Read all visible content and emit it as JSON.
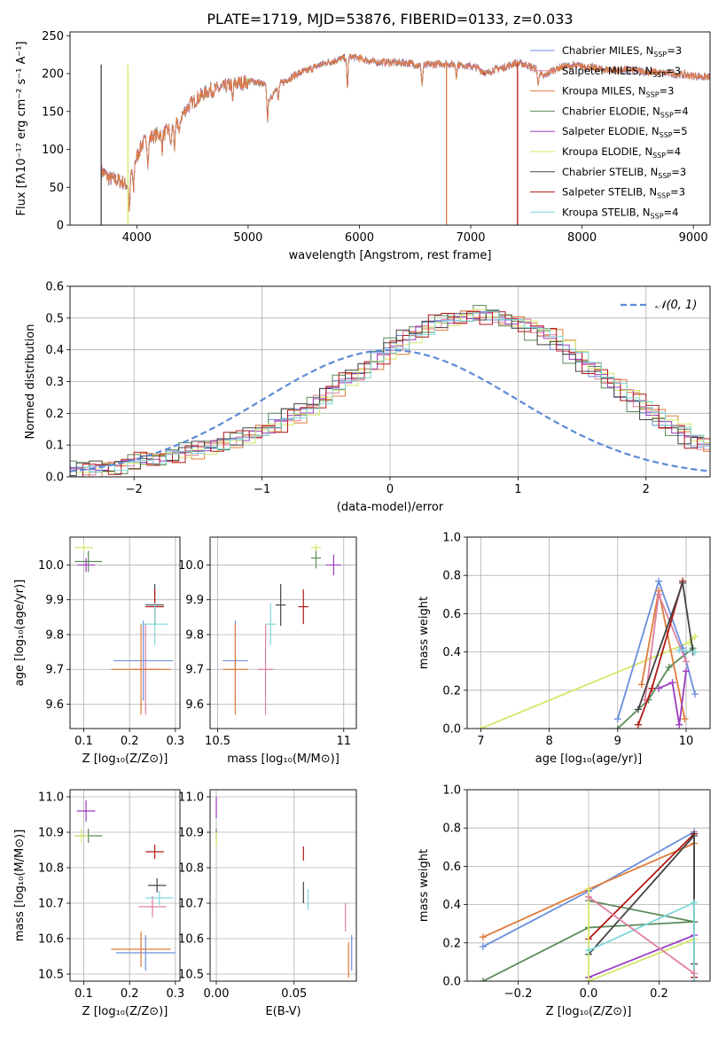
{
  "title": "PLATE=1719, MJD=53876, FIBERID=0133, z=0.033",
  "colors": {
    "chabrier_miles": "#6a8fdb",
    "salpeter_miles": "#e07fa0",
    "kroupa_miles": "#e07b39",
    "chabrier_elodie": "#5a8a5a",
    "salpeter_elodie": "#9b3cc0",
    "kroupa_elodie": "#d4e86a",
    "chabrier_stelib": "#444444",
    "salpeter_stelib": "#b01818",
    "kroupa_stelib": "#7fd7da"
  },
  "chart_data": [
    {
      "id": "spectrum",
      "type": "line",
      "xlabel": "wavelength [Angstrom, rest frame]",
      "ylabel": "Flux [fλ10⁻¹⁷ erg cm⁻² s⁻¹ A⁻¹]",
      "xlim": [
        3400,
        9150
      ],
      "ylim": [
        0,
        255
      ],
      "xticks": [
        4000,
        5000,
        6000,
        7000,
        8000,
        9000
      ],
      "yticks": [
        0,
        50,
        100,
        150,
        200,
        250
      ],
      "legend": [
        {
          "label": "Chabrier MILES, N",
          "sub": "SSP",
          "val": "=3",
          "color": "chabrier_miles"
        },
        {
          "label": "Salpeter MILES, N",
          "sub": "SSP",
          "val": "=3",
          "color": "salpeter_miles"
        },
        {
          "label": "Kroupa MILES, N",
          "sub": "SSP",
          "val": "=3",
          "color": "kroupa_miles"
        },
        {
          "label": "Chabrier ELODIE, N",
          "sub": "SSP",
          "val": "=4",
          "color": "chabrier_elodie"
        },
        {
          "label": "Salpeter ELODIE, N",
          "sub": "SSP",
          "val": "=5",
          "color": "salpeter_elodie"
        },
        {
          "label": "Kroupa ELODIE, N",
          "sub": "SSP",
          "val": "=4",
          "color": "kroupa_elodie"
        },
        {
          "label": "Chabrier STELIB, N",
          "sub": "SSP",
          "val": "=3",
          "color": "chabrier_stelib"
        },
        {
          "label": "Salpeter STELIB, N",
          "sub": "SSP",
          "val": "=3",
          "color": "salpeter_stelib"
        },
        {
          "label": "Kroupa STELIB, N",
          "sub": "SSP",
          "val": "=4",
          "color": "kroupa_stelib"
        }
      ],
      "continuum": [
        [
          3680,
          72
        ],
        [
          3750,
          62
        ],
        [
          3850,
          58
        ],
        [
          3920,
          52
        ],
        [
          3960,
          75
        ],
        [
          4050,
          108
        ],
        [
          4150,
          118
        ],
        [
          4250,
          122
        ],
        [
          4350,
          132
        ],
        [
          4450,
          155
        ],
        [
          4550,
          168
        ],
        [
          4650,
          178
        ],
        [
          4750,
          180
        ],
        [
          4850,
          186
        ],
        [
          4950,
          188
        ],
        [
          5050,
          190
        ],
        [
          5150,
          185
        ],
        [
          5200,
          165
        ],
        [
          5250,
          182
        ],
        [
          5350,
          192
        ],
        [
          5450,
          200
        ],
        [
          5550,
          205
        ],
        [
          5650,
          212
        ],
        [
          5750,
          216
        ],
        [
          5850,
          220
        ],
        [
          5950,
          222
        ],
        [
          6050,
          218
        ],
        [
          6150,
          215
        ],
        [
          6250,
          215
        ],
        [
          6350,
          214
        ],
        [
          6450,
          214
        ],
        [
          6550,
          210
        ],
        [
          6650,
          212
        ],
        [
          6750,
          213
        ],
        [
          6850,
          212
        ],
        [
          6950,
          211
        ],
        [
          7050,
          208
        ],
        [
          7150,
          200
        ],
        [
          7200,
          205
        ],
        [
          7300,
          208
        ],
        [
          7400,
          214
        ],
        [
          7500,
          212
        ],
        [
          7600,
          205
        ],
        [
          7650,
          195
        ],
        [
          7750,
          206
        ],
        [
          7850,
          210
        ],
        [
          8000,
          210
        ],
        [
          8200,
          205
        ],
        [
          8400,
          205
        ],
        [
          8600,
          202
        ],
        [
          8800,
          200
        ],
        [
          9000,
          197
        ],
        [
          9150,
          195
        ]
      ],
      "dips": [
        [
          3935,
          40
        ],
        [
          3970,
          35
        ],
        [
          4101,
          30
        ],
        [
          4227,
          20
        ],
        [
          4305,
          25
        ],
        [
          4340,
          30
        ],
        [
          4383,
          20
        ],
        [
          4861,
          25
        ],
        [
          5175,
          35
        ],
        [
          5270,
          20
        ],
        [
          5892,
          40
        ],
        [
          6563,
          25
        ],
        [
          6870,
          15
        ],
        [
          7605,
          20
        ]
      ],
      "drops": [
        {
          "x": 6782,
          "color": "kroupa_miles"
        },
        {
          "x": 7420,
          "color": "salpeter_stelib"
        },
        {
          "x": 3680,
          "color": "chabrier_stelib"
        },
        {
          "x": 3920,
          "color": "kroupa_elodie"
        }
      ]
    },
    {
      "id": "residuals",
      "type": "histogram",
      "xlabel": "(data-model)/error",
      "ylabel": "Normed distribution",
      "xlim": [
        -2.5,
        2.5
      ],
      "ylim": [
        0,
        0.6
      ],
      "xticks": [
        -2,
        -1,
        0,
        1,
        2
      ],
      "xtick_labels": [
        "−2",
        "−1",
        "0",
        "1",
        "2"
      ],
      "yticks": [
        0.0,
        0.1,
        0.2,
        0.3,
        0.4,
        0.5,
        0.6
      ],
      "gaussian_label": "𝒩(0, 1)",
      "gaussian_color": "#5b8bd8",
      "bin_edges": [
        -2.5,
        2.5
      ],
      "bin_width": 0.1,
      "hist_ref": [
        0.02,
        0.02,
        0.03,
        0.03,
        0.04,
        0.05,
        0.05,
        0.06,
        0.07,
        0.08,
        0.09,
        0.1,
        0.11,
        0.12,
        0.14,
        0.15,
        0.17,
        0.19,
        0.21,
        0.24,
        0.27,
        0.3,
        0.32,
        0.35,
        0.38,
        0.41,
        0.44,
        0.46,
        0.48,
        0.49,
        0.5,
        0.51,
        0.51,
        0.5,
        0.49,
        0.48,
        0.46,
        0.44,
        0.41,
        0.38,
        0.35,
        0.32,
        0.29,
        0.26,
        0.23,
        0.2,
        0.17,
        0.15,
        0.12,
        0.1
      ],
      "hist_scatter": [
        0.01,
        -0.006,
        0.004,
        -0.012,
        0.008,
        0.003,
        -0.009,
        0.006,
        0.011,
        -0.004,
        0.005,
        -0.01,
        0.007,
        0.002,
        -0.008,
        0.012
      ]
    },
    {
      "id": "age_vs_Z",
      "type": "errorbar",
      "xlabel": "Z [log₁₀(Z/Z⊙)]",
      "ylabel": "age  [log₁₀(age/yr)]",
      "xlim": [
        0.07,
        0.31
      ],
      "ylim": [
        9.53,
        10.08
      ],
      "xticks": [
        0.1,
        0.2,
        0.3
      ],
      "yticks": [
        9.6,
        9.7,
        9.8,
        9.9,
        10.0
      ],
      "points": [
        {
          "c": "chabrier_miles",
          "x": 0.23,
          "xerr": 0.065,
          "y": 9.725,
          "yerr": 0.115
        },
        {
          "c": "salpeter_miles",
          "x": 0.235,
          "xerr": 0.03,
          "y": 9.7,
          "yerr": 0.13
        },
        {
          "c": "kroupa_miles",
          "x": 0.225,
          "xerr": 0.065,
          "y": 9.7,
          "yerr": 0.13
        },
        {
          "c": "chabrier_elodie",
          "x": 0.11,
          "xerr": 0.03,
          "y": 10.01,
          "yerr": 0.03
        },
        {
          "c": "salpeter_elodie",
          "x": 0.105,
          "xerr": 0.02,
          "y": 10.0,
          "yerr": 0.02
        },
        {
          "c": "kroupa_elodie",
          "x": 0.1,
          "xerr": 0.02,
          "y": 10.05,
          "yerr": 0.01
        },
        {
          "c": "chabrier_stelib",
          "x": 0.255,
          "xerr": 0.02,
          "y": 9.885,
          "yerr": 0.06
        },
        {
          "c": "salpeter_stelib",
          "x": 0.255,
          "xerr": 0.02,
          "y": 9.88,
          "yerr": 0.05
        },
        {
          "c": "kroupa_stelib",
          "x": 0.255,
          "xerr": 0.03,
          "y": 9.83,
          "yerr": 0.06
        }
      ]
    },
    {
      "id": "age_vs_mass",
      "type": "errorbar",
      "xlabel": "mass [log₁₀(M/M⊙)]",
      "ylabel": "",
      "xlim": [
        10.47,
        11.05
      ],
      "ylim": [
        9.53,
        10.08
      ],
      "xticks": [
        10.5,
        11.0
      ],
      "yticks": [
        9.6,
        9.7,
        9.8,
        9.9,
        10.0
      ],
      "points": [
        {
          "c": "chabrier_miles",
          "x": 10.57,
          "xerr": 0.05,
          "y": 9.725,
          "yerr": 0.115
        },
        {
          "c": "salpeter_miles",
          "x": 10.69,
          "xerr": 0.03,
          "y": 9.7,
          "yerr": 0.13
        },
        {
          "c": "kroupa_miles",
          "x": 10.57,
          "xerr": 0.05,
          "y": 9.7,
          "yerr": 0.13
        },
        {
          "c": "chabrier_elodie",
          "x": 10.89,
          "xerr": 0.02,
          "y": 10.02,
          "yerr": 0.03
        },
        {
          "c": "salpeter_elodie",
          "x": 10.96,
          "xerr": 0.03,
          "y": 10.0,
          "yerr": 0.03
        },
        {
          "c": "kroupa_elodie",
          "x": 10.89,
          "xerr": 0.02,
          "y": 10.05,
          "yerr": 0.01
        },
        {
          "c": "chabrier_stelib",
          "x": 10.75,
          "xerr": 0.02,
          "y": 9.885,
          "yerr": 0.06
        },
        {
          "c": "salpeter_stelib",
          "x": 10.84,
          "xerr": 0.02,
          "y": 9.88,
          "yerr": 0.05
        },
        {
          "c": "kroupa_stelib",
          "x": 10.71,
          "xerr": 0.02,
          "y": 9.83,
          "yerr": 0.06
        }
      ]
    },
    {
      "id": "weight_vs_age",
      "type": "line",
      "xlabel": "age  [log₁₀(age/yr)]",
      "ylabel": "mass weight",
      "xlim": [
        6.8,
        10.35
      ],
      "ylim": [
        0,
        1.0
      ],
      "xticks": [
        7,
        8,
        9,
        10
      ],
      "yticks": [
        0.0,
        0.2,
        0.4,
        0.6,
        0.8,
        1.0
      ],
      "series": [
        {
          "c": "kroupa_elodie",
          "x": [
            7.0,
            10.05,
            10.13
          ],
          "y": [
            0.0,
            0.45,
            0.48
          ]
        },
        {
          "c": "chabrier_elodie",
          "x": [
            9.0,
            9.45,
            9.75,
            10.1
          ],
          "y": [
            0.0,
            0.15,
            0.32,
            0.42
          ]
        },
        {
          "c": "chabrier_miles",
          "x": [
            9.0,
            9.6,
            9.95,
            10.13
          ],
          "y": [
            0.05,
            0.77,
            0.42,
            0.18
          ]
        },
        {
          "c": "kroupa_miles",
          "x": [
            9.35,
            9.6,
            9.98
          ],
          "y": [
            0.23,
            0.72,
            0.05
          ]
        },
        {
          "c": "salpeter_miles",
          "x": [
            9.4,
            9.6,
            10.0
          ],
          "y": [
            0.15,
            0.7,
            0.35
          ]
        },
        {
          "c": "salpeter_stelib",
          "x": [
            9.3,
            9.5,
            9.95
          ],
          "y": [
            0.02,
            0.21,
            0.77
          ]
        },
        {
          "c": "chabrier_stelib",
          "x": [
            9.3,
            9.95,
            10.1
          ],
          "y": [
            0.1,
            0.76,
            0.4
          ]
        },
        {
          "c": "salpeter_elodie",
          "x": [
            9.6,
            9.8,
            9.9,
            10.0
          ],
          "y": [
            0.21,
            0.24,
            0.02,
            0.3
          ]
        },
        {
          "c": "kroupa_stelib",
          "x": [
            9.9,
            10.13
          ],
          "y": [
            0.41,
            0.4
          ]
        }
      ]
    },
    {
      "id": "mass_vs_Z",
      "type": "errorbar",
      "xlabel": "Z [log₁₀(Z/Z⊙)]",
      "ylabel": "mass [log₁₀(M/M⊙)]",
      "xlim": [
        0.07,
        0.31
      ],
      "ylim": [
        10.48,
        11.02
      ],
      "xticks": [
        0.1,
        0.2,
        0.3
      ],
      "yticks": [
        10.5,
        10.6,
        10.7,
        10.8,
        10.9,
        11.0
      ],
      "points": [
        {
          "c": "chabrier_miles",
          "x": 0.235,
          "xerr": 0.065,
          "y": 10.56,
          "yerr": 0.05
        },
        {
          "c": "salpeter_miles",
          "x": 0.25,
          "xerr": 0.03,
          "y": 10.69,
          "yerr": 0.03
        },
        {
          "c": "kroupa_miles",
          "x": 0.225,
          "xerr": 0.065,
          "y": 10.57,
          "yerr": 0.05
        },
        {
          "c": "chabrier_elodie",
          "x": 0.11,
          "xerr": 0.03,
          "y": 10.89,
          "yerr": 0.02
        },
        {
          "c": "salpeter_elodie",
          "x": 0.105,
          "xerr": 0.02,
          "y": 10.96,
          "yerr": 0.03
        },
        {
          "c": "kroupa_elodie",
          "x": 0.095,
          "xerr": 0.015,
          "y": 10.89,
          "yerr": 0.02
        },
        {
          "c": "chabrier_stelib",
          "x": 0.26,
          "xerr": 0.02,
          "y": 10.75,
          "yerr": 0.02
        },
        {
          "c": "salpeter_stelib",
          "x": 0.255,
          "xerr": 0.02,
          "y": 10.845,
          "yerr": 0.02
        },
        {
          "c": "kroupa_stelib",
          "x": 0.265,
          "xerr": 0.03,
          "y": 10.715,
          "yerr": 0.02
        }
      ]
    },
    {
      "id": "mass_vs_EBV",
      "type": "errorbar",
      "xlabel": "E(B-V)",
      "ylabel": "",
      "xlim": [
        -0.004,
        0.09
      ],
      "ylim": [
        10.48,
        11.02
      ],
      "xticks": [
        0.0,
        0.05
      ],
      "xtick_labels": [
        "0.00",
        "0.05"
      ],
      "yticks": [
        10.5,
        10.6,
        10.7,
        10.8,
        10.9,
        11.0
      ],
      "points": [
        {
          "c": "chabrier_miles",
          "x": 0.087,
          "xerr": 0,
          "y": 10.56,
          "yerr": 0.05
        },
        {
          "c": "salpeter_miles",
          "x": 0.083,
          "xerr": 0,
          "y": 10.66,
          "yerr": 0.04
        },
        {
          "c": "kroupa_miles",
          "x": 0.085,
          "xerr": 0,
          "y": 10.54,
          "yerr": 0.05
        },
        {
          "c": "chabrier_elodie",
          "x": 0.0,
          "xerr": 0,
          "y": 10.89,
          "yerr": 0.02
        },
        {
          "c": "salpeter_elodie",
          "x": 0.0,
          "xerr": 0,
          "y": 10.97,
          "yerr": 0.03
        },
        {
          "c": "kroupa_elodie",
          "x": 0.0,
          "xerr": 0,
          "y": 10.88,
          "yerr": 0.02
        },
        {
          "c": "chabrier_stelib",
          "x": 0.056,
          "xerr": 0,
          "y": 10.73,
          "yerr": 0.03
        },
        {
          "c": "salpeter_stelib",
          "x": 0.056,
          "xerr": 0,
          "y": 10.84,
          "yerr": 0.02
        },
        {
          "c": "kroupa_stelib",
          "x": 0.059,
          "xerr": 0,
          "y": 10.71,
          "yerr": 0.03
        }
      ]
    },
    {
      "id": "weight_vs_Z",
      "type": "line",
      "xlabel": "Z [log₁₀(Z/Z⊙)]",
      "ylabel": "mass weight",
      "xlim": [
        -0.345,
        0.345
      ],
      "ylim": [
        0,
        1.0
      ],
      "xticks": [
        -0.2,
        0.0,
        0.2
      ],
      "xtick_labels": [
        "−0.2",
        "0.0",
        "0.2"
      ],
      "yticks": [
        0.0,
        0.2,
        0.4,
        0.6,
        0.8,
        1.0
      ],
      "series": [
        {
          "c": "chabrier_miles",
          "x": [
            -0.3,
            0.0,
            0.3
          ],
          "y": [
            0.18,
            0.47,
            0.78
          ]
        },
        {
          "c": "kroupa_miles",
          "x": [
            -0.3,
            0.0,
            0.3
          ],
          "y": [
            0.23,
            0.48,
            0.72
          ]
        },
        {
          "c": "chabrier_elodie",
          "x": [
            -0.3,
            0.0,
            0.3
          ],
          "y": [
            0.0,
            0.28,
            0.31
          ]
        },
        {
          "c": "chabrier_elodie",
          "x": [
            0.0,
            0.3
          ],
          "y": [
            0.42,
            0.31
          ]
        },
        {
          "c": "salpeter_stelib",
          "x": [
            0.0,
            0.3,
            0.3
          ],
          "y": [
            0.22,
            0.77,
            0.02
          ]
        },
        {
          "c": "chabrier_stelib",
          "x": [
            0.0,
            0.3,
            0.3
          ],
          "y": [
            0.14,
            0.76,
            0.09
          ]
        },
        {
          "c": "salpeter_elodie",
          "x": [
            0.0,
            0.3
          ],
          "y": [
            0.02,
            0.24
          ]
        },
        {
          "c": "kroupa_elodie",
          "x": [
            0.0,
            0.0,
            0.3
          ],
          "y": [
            0.48,
            0.0,
            0.22
          ]
        },
        {
          "c": "kroupa_stelib",
          "x": [
            0.0,
            0.3,
            0.3
          ],
          "y": [
            0.16,
            0.41,
            0.0
          ]
        },
        {
          "c": "salpeter_miles",
          "x": [
            0.0,
            0.3
          ],
          "y": [
            0.44,
            0.04
          ]
        }
      ]
    }
  ]
}
